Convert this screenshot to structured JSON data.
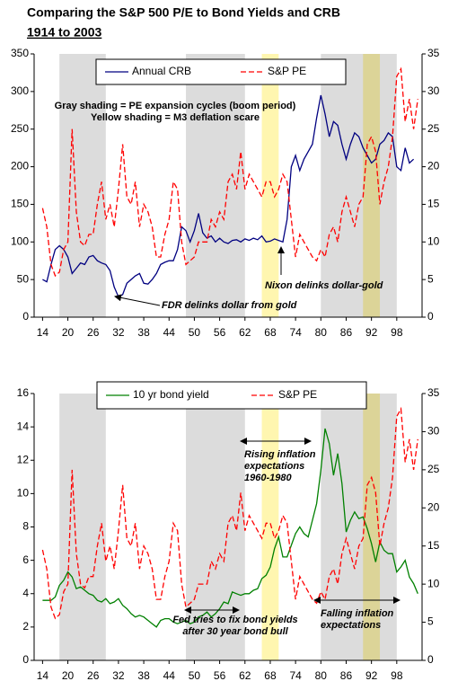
{
  "title": "Comparing the S&P 500 P/E to Bond Yields and CRB",
  "subtitle": "1914 to 2003",
  "chart_data": [
    {
      "type": "line",
      "x": [
        1914,
        1915,
        1916,
        1917,
        1918,
        1919,
        1920,
        1921,
        1922,
        1923,
        1924,
        1925,
        1926,
        1927,
        1928,
        1929,
        1930,
        1931,
        1932,
        1933,
        1934,
        1935,
        1936,
        1937,
        1938,
        1939,
        1940,
        1941,
        1942,
        1943,
        1944,
        1945,
        1946,
        1947,
        1948,
        1949,
        1950,
        1951,
        1952,
        1953,
        1954,
        1955,
        1956,
        1957,
        1958,
        1959,
        1960,
        1961,
        1962,
        1963,
        1964,
        1965,
        1966,
        1967,
        1968,
        1969,
        1970,
        1971,
        1972,
        1973,
        1974,
        1975,
        1976,
        1977,
        1978,
        1979,
        1980,
        1981,
        1982,
        1983,
        1984,
        1985,
        1986,
        1987,
        1988,
        1989,
        1990,
        1991,
        1992,
        1993,
        1994,
        1995,
        1996,
        1997,
        1998,
        1999,
        2000,
        2001,
        2002,
        2003
      ],
      "xlim": [
        1912,
        2004
      ],
      "xticks": [
        {
          "value": 1914,
          "label": "14"
        },
        {
          "value": 1920,
          "label": "20"
        },
        {
          "value": 1926,
          "label": "26"
        },
        {
          "value": 1932,
          "label": "32"
        },
        {
          "value": 1938,
          "label": "38"
        },
        {
          "value": 1944,
          "label": "44"
        },
        {
          "value": 1950,
          "label": "50"
        },
        {
          "value": 1956,
          "label": "56"
        },
        {
          "value": 1962,
          "label": "62"
        },
        {
          "value": 1968,
          "label": "68"
        },
        {
          "value": 1974,
          "label": "74"
        },
        {
          "value": 1980,
          "label": "80"
        },
        {
          "value": 1986,
          "label": "86"
        },
        {
          "value": 1992,
          "label": "92"
        },
        {
          "value": 1998,
          "label": "98"
        }
      ],
      "ylim": [
        0,
        350
      ],
      "yticks": [
        0,
        50,
        100,
        150,
        200,
        250,
        300,
        350
      ],
      "y2lim": [
        0,
        35
      ],
      "y2ticks": [
        0,
        5,
        10,
        15,
        20,
        25,
        30,
        35
      ],
      "shading": [
        {
          "start": 1918,
          "end": 1929,
          "color": "#dcdcdc"
        },
        {
          "start": 1948,
          "end": 1962,
          "color": "#dcdcdc"
        },
        {
          "start": 1980,
          "end": 1998,
          "color": "#dcdcdc"
        },
        {
          "start": 1966,
          "end": 1970,
          "color": "#fff6b0"
        },
        {
          "start": 1990,
          "end": 1994,
          "color": "#fff6b0"
        }
      ],
      "series": [
        {
          "name": "Annual CRB",
          "color": "#000080",
          "line_style": "solid",
          "values": [
            50,
            47,
            70,
            90,
            95,
            90,
            80,
            58,
            65,
            72,
            70,
            80,
            82,
            75,
            72,
            70,
            62,
            40,
            27,
            30,
            45,
            50,
            55,
            58,
            45,
            44,
            50,
            58,
            70,
            73,
            75,
            75,
            90,
            120,
            115,
            100,
            115,
            138,
            112,
            105,
            108,
            100,
            105,
            100,
            98,
            102,
            103,
            100,
            104,
            102,
            105,
            103,
            108,
            100,
            101,
            104,
            102,
            100,
            130,
            200,
            215,
            195,
            210,
            220,
            230,
            265,
            295,
            270,
            240,
            260,
            255,
            230,
            210,
            230,
            245,
            240,
            225,
            215,
            205,
            210,
            230,
            235,
            245,
            240,
            200,
            195,
            225,
            205,
            210,
            null
          ]
        },
        {
          "name": "S&P PE",
          "color": "#ff0000",
          "line_style": "dashed",
          "axis": "y2",
          "values": [
            14.5,
            12,
            7,
            5.5,
            6,
            9,
            10,
            25,
            14,
            10,
            9.5,
            11,
            11,
            15,
            18,
            13,
            15,
            12,
            17,
            23,
            16,
            15,
            18,
            12,
            15,
            14,
            12,
            8,
            8,
            11,
            13,
            18,
            17,
            10,
            7,
            7.5,
            8,
            10,
            10,
            10,
            13,
            12,
            14,
            13,
            18,
            19,
            17,
            22,
            17,
            19,
            18,
            17,
            16,
            18,
            18,
            16,
            17,
            19,
            18,
            13,
            8,
            11,
            10,
            9,
            8,
            7.5,
            9,
            8,
            11,
            12,
            10,
            14,
            16,
            14,
            12,
            15,
            16,
            23,
            24,
            22,
            15,
            18,
            20,
            24,
            32,
            33,
            26,
            29,
            25,
            29
          ]
        }
      ],
      "annotations": [
        {
          "lines": [
            "Gray shading = PE expansion cycles (boom period)",
            "Yellow shading = M3 deflation scare"
          ]
        },
        {
          "lines": [
            "FDR delinks dollar from gold"
          ]
        },
        {
          "lines": [
            "Nixon delinks dollar-gold"
          ]
        }
      ]
    },
    {
      "type": "line",
      "x": [
        1914,
        1915,
        1916,
        1917,
        1918,
        1919,
        1920,
        1921,
        1922,
        1923,
        1924,
        1925,
        1926,
        1927,
        1928,
        1929,
        1930,
        1931,
        1932,
        1933,
        1934,
        1935,
        1936,
        1937,
        1938,
        1939,
        1940,
        1941,
        1942,
        1943,
        1944,
        1945,
        1946,
        1947,
        1948,
        1949,
        1950,
        1951,
        1952,
        1953,
        1954,
        1955,
        1956,
        1957,
        1958,
        1959,
        1960,
        1961,
        1962,
        1963,
        1964,
        1965,
        1966,
        1967,
        1968,
        1969,
        1970,
        1971,
        1972,
        1973,
        1974,
        1975,
        1976,
        1977,
        1978,
        1979,
        1980,
        1981,
        1982,
        1983,
        1984,
        1985,
        1986,
        1987,
        1988,
        1989,
        1990,
        1991,
        1992,
        1993,
        1994,
        1995,
        1996,
        1997,
        1998,
        1999,
        2000,
        2001,
        2002,
        2003
      ],
      "xlim": [
        1912,
        2004
      ],
      "xticks": [
        {
          "value": 1914,
          "label": "14"
        },
        {
          "value": 1920,
          "label": "20"
        },
        {
          "value": 1926,
          "label": "26"
        },
        {
          "value": 1932,
          "label": "32"
        },
        {
          "value": 1938,
          "label": "38"
        },
        {
          "value": 1944,
          "label": "44"
        },
        {
          "value": 1950,
          "label": "50"
        },
        {
          "value": 1956,
          "label": "56"
        },
        {
          "value": 1962,
          "label": "62"
        },
        {
          "value": 1968,
          "label": "68"
        },
        {
          "value": 1974,
          "label": "74"
        },
        {
          "value": 1980,
          "label": "80"
        },
        {
          "value": 1986,
          "label": "86"
        },
        {
          "value": 1992,
          "label": "92"
        },
        {
          "value": 1998,
          "label": "98"
        }
      ],
      "ylim": [
        0,
        16
      ],
      "yticks": [
        0,
        2,
        4,
        6,
        8,
        10,
        12,
        14,
        16
      ],
      "y2lim": [
        0,
        35
      ],
      "y2ticks": [
        0,
        5,
        10,
        15,
        20,
        25,
        30,
        35
      ],
      "shading": [
        {
          "start": 1918,
          "end": 1929,
          "color": "#dcdcdc"
        },
        {
          "start": 1948,
          "end": 1962,
          "color": "#dcdcdc"
        },
        {
          "start": 1980,
          "end": 1998,
          "color": "#dcdcdc"
        },
        {
          "start": 1966,
          "end": 1970,
          "color": "#fff6b0"
        },
        {
          "start": 1990,
          "end": 1994,
          "color": "#fff6b0"
        }
      ],
      "series": [
        {
          "name": "10 yr bond yield",
          "color": "#008000",
          "line_style": "solid",
          "values": [
            3.6,
            3.6,
            3.6,
            3.8,
            4.5,
            4.8,
            5.3,
            5.0,
            4.3,
            4.4,
            4.2,
            4.0,
            3.9,
            3.6,
            3.5,
            3.7,
            3.4,
            3.5,
            3.7,
            3.3,
            3.1,
            2.8,
            2.6,
            2.7,
            2.6,
            2.4,
            2.2,
            2.0,
            2.4,
            2.5,
            2.5,
            2.3,
            2.2,
            2.3,
            2.4,
            2.2,
            2.3,
            2.6,
            2.7,
            2.9,
            2.6,
            2.8,
            3.1,
            3.5,
            3.4,
            4.1,
            4.0,
            3.9,
            4.0,
            4.0,
            4.2,
            4.3,
            4.9,
            5.1,
            5.6,
            6.7,
            7.4,
            6.2,
            6.2,
            6.9,
            7.6,
            8.0,
            7.6,
            7.4,
            8.4,
            9.4,
            11.4,
            13.9,
            13.0,
            11.1,
            12.4,
            10.6,
            7.7,
            8.4,
            8.9,
            8.5,
            8.6,
            7.9,
            7.0,
            5.9,
            7.1,
            6.6,
            6.4,
            6.4,
            5.3,
            5.6,
            6.0,
            5.0,
            4.6,
            4.0
          ]
        },
        {
          "name": "S&P PE",
          "color": "#ff0000",
          "line_style": "dashed",
          "axis": "y2",
          "values": [
            14.5,
            12,
            7,
            5.5,
            6,
            9,
            10,
            25,
            14,
            10,
            9.5,
            11,
            11,
            15,
            18,
            13,
            15,
            12,
            17,
            23,
            16,
            15,
            18,
            12,
            15,
            14,
            12,
            8,
            8,
            11,
            13,
            18,
            17,
            10,
            7,
            7.5,
            8,
            10,
            10,
            10,
            13,
            12,
            14,
            13,
            18,
            19,
            17,
            22,
            17,
            19,
            18,
            17,
            16,
            18,
            18,
            16,
            17,
            19,
            18,
            13,
            8,
            11,
            10,
            9,
            8,
            7.5,
            9,
            8,
            11,
            12,
            10,
            14,
            16,
            14,
            12,
            15,
            16,
            23,
            24,
            22,
            15,
            18,
            20,
            24,
            32,
            33,
            26,
            29,
            25,
            29
          ]
        }
      ],
      "annotations": [
        {
          "lines": [
            "Rising inflation",
            "expectations",
            "1960-1980"
          ]
        },
        {
          "lines": [
            "Fed tries to fix bond yields",
            "after 30 year bond bull"
          ]
        },
        {
          "lines": [
            "Falling inflation",
            "expectations"
          ]
        }
      ]
    }
  ]
}
